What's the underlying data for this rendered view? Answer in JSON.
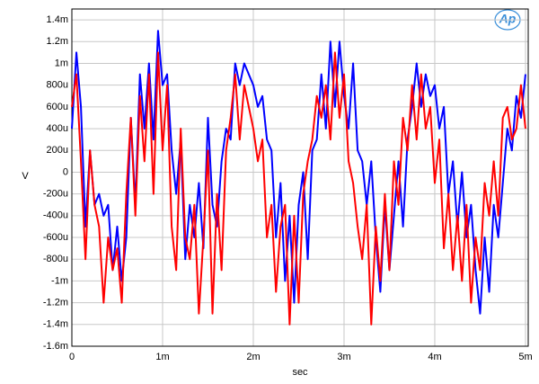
{
  "chart_data": {
    "type": "line",
    "xlabel": "sec",
    "ylabel": "V",
    "logo": "Ap",
    "xlim": [
      0,
      0.00503
    ],
    "ylim": [
      -0.0016,
      0.0015
    ],
    "xticks": [
      0,
      {
        "value": 0.001,
        "label": "1m"
      },
      {
        "value": 0.002,
        "label": "2m"
      },
      {
        "value": 0.003,
        "label": "3m"
      },
      {
        "value": 0.004,
        "label": "4m"
      },
      {
        "value": 0.005,
        "label": "5m"
      }
    ],
    "yticks": [
      {
        "value": -0.0016,
        "label": "-1.6m"
      },
      {
        "value": -0.0014,
        "label": "-1.4m"
      },
      {
        "value": -0.0012,
        "label": "-1.2m"
      },
      {
        "value": -0.001,
        "label": "-1m"
      },
      {
        "value": -0.0008,
        "label": "-800u"
      },
      {
        "value": -0.0006,
        "label": "-600u"
      },
      {
        "value": -0.0004,
        "label": "-400u"
      },
      {
        "value": -0.0002,
        "label": "-200u"
      },
      0,
      {
        "value": 0.0002,
        "label": "200u"
      },
      {
        "value": 0.0004,
        "label": "400u"
      },
      {
        "value": 0.0006,
        "label": "600u"
      },
      {
        "value": 0.0008,
        "label": "800u"
      },
      {
        "value": 0.001,
        "label": "1m"
      },
      {
        "value": 0.0012,
        "label": "1.2m"
      },
      {
        "value": 0.0014,
        "label": "1.4m"
      }
    ],
    "grid": true,
    "x": [
      0,
      5e-05,
      0.0001,
      0.00015,
      0.0002,
      0.00025,
      0.0003,
      0.00035,
      0.0004,
      0.00045,
      0.0005,
      0.00055,
      0.0006,
      0.00065,
      0.0007,
      0.00075,
      0.0008,
      0.00085,
      0.0009,
      0.00095,
      0.001,
      0.00105,
      0.0011,
      0.00115,
      0.0012,
      0.00125,
      0.0013,
      0.00135,
      0.0014,
      0.00145,
      0.0015,
      0.00155,
      0.0016,
      0.00165,
      0.0017,
      0.00175,
      0.0018,
      0.00185,
      0.0019,
      0.00195,
      0.002,
      0.00205,
      0.0021,
      0.00215,
      0.0022,
      0.00225,
      0.0023,
      0.00235,
      0.0024,
      0.00245,
      0.0025,
      0.00255,
      0.0026,
      0.00265,
      0.0027,
      0.00275,
      0.0028,
      0.00285,
      0.0029,
      0.00295,
      0.003,
      0.00305,
      0.0031,
      0.00315,
      0.0032,
      0.00325,
      0.0033,
      0.00335,
      0.0034,
      0.00345,
      0.0035,
      0.00355,
      0.0036,
      0.00365,
      0.0037,
      0.00375,
      0.0038,
      0.00385,
      0.0039,
      0.00395,
      0.004,
      0.00405,
      0.0041,
      0.00415,
      0.0042,
      0.00425,
      0.0043,
      0.00435,
      0.0044,
      0.00445,
      0.0045,
      0.00455,
      0.0046,
      0.00465,
      0.0047,
      0.00475,
      0.0048,
      0.00485,
      0.0049,
      0.00495,
      0.005
    ],
    "series": [
      {
        "color": "#0000ff",
        "values": [
          0.0004,
          0.0011,
          0.0006,
          -0.0005,
          0.0002,
          -0.0003,
          -0.0002,
          -0.0004,
          -0.0003,
          -0.0009,
          -0.0005,
          -0.001,
          -0.0006,
          0.0005,
          -0.0003,
          0.0009,
          0.0004,
          0.001,
          0.0003,
          0.0013,
          0.0008,
          0.0009,
          0.0002,
          -0.0002,
          0.0003,
          -0.0008,
          -0.0003,
          -0.0006,
          -0.0001,
          -0.0007,
          0.0005,
          -0.0003,
          -0.0005,
          0.0001,
          0.0004,
          0.0003,
          0.001,
          0.0008,
          0.001,
          0.0009,
          0.0008,
          0.0006,
          0.0007,
          0.0003,
          0.0002,
          -0.0006,
          -0.0001,
          -0.001,
          -0.0004,
          -0.0012,
          -0.0003,
          0,
          -0.0008,
          0.0002,
          0.0003,
          0.0009,
          0.0004,
          0.0012,
          0.0006,
          0.0012,
          0.0007,
          0.0004,
          0.001,
          0.0002,
          0.0001,
          -0.0003,
          0.0001,
          -0.0006,
          -0.0011,
          -0.0003,
          -0.0009,
          -0.0004,
          0.0001,
          -0.0005,
          0.0003,
          0.0006,
          0.001,
          0.0006,
          0.0009,
          0.0007,
          0.0008,
          0.0004,
          0.0006,
          -0.0002,
          0.0001,
          -0.0005,
          0,
          -0.0006,
          -0.0003,
          -0.0009,
          -0.0013,
          -0.0006,
          -0.0011,
          -0.0003,
          -0.0006,
          -0.0001,
          0.0004,
          0.0002,
          0.0007,
          0.0005,
          0.0009
        ]
      },
      {
        "color": "#ff0000",
        "values": [
          0.0006,
          0.0009,
          0.0001,
          -0.0008,
          0.0002,
          -0.0003,
          -0.0005,
          -0.0012,
          -0.0006,
          -0.0009,
          -0.0007,
          -0.0012,
          -0.0002,
          0.0005,
          -0.0004,
          0.0007,
          0.0001,
          0.0009,
          -0.0002,
          0.0011,
          0.0002,
          0.0008,
          -0.0005,
          -0.0009,
          0.0004,
          -0.0006,
          -0.0008,
          -0.0003,
          -0.0013,
          -0.0006,
          0.0002,
          -0.0013,
          -0.0002,
          -0.0009,
          0.0002,
          0.0005,
          0.0009,
          0.0003,
          0.0008,
          0.0006,
          0.0004,
          0.0001,
          0.0003,
          -0.0006,
          -0.0003,
          -0.0011,
          -0.0005,
          -0.0003,
          -0.0014,
          -0.0004,
          -0.0012,
          -0.0002,
          0.0001,
          0.0003,
          0.0007,
          0.0005,
          0.0008,
          0.0003,
          0.0011,
          0.0005,
          0.0009,
          0.0001,
          -0.0001,
          -0.0005,
          -0.0008,
          -0.0003,
          -0.0014,
          -0.0005,
          -0.001,
          -0.0002,
          -0.0009,
          0.0001,
          -0.0003,
          0.0005,
          0.0002,
          0.0008,
          0.0003,
          0.0009,
          0.0004,
          0.0006,
          -0.0001,
          0.0003,
          -0.0007,
          -0.0002,
          -0.0009,
          -0.0004,
          -0.001,
          -0.0003,
          -0.0012,
          -0.0006,
          -0.0009,
          -0.0001,
          -0.0004,
          0.0001,
          -0.0004,
          0.0005,
          0.0006,
          0.0003,
          0.0004,
          0.0008,
          0.0004
        ]
      }
    ]
  }
}
